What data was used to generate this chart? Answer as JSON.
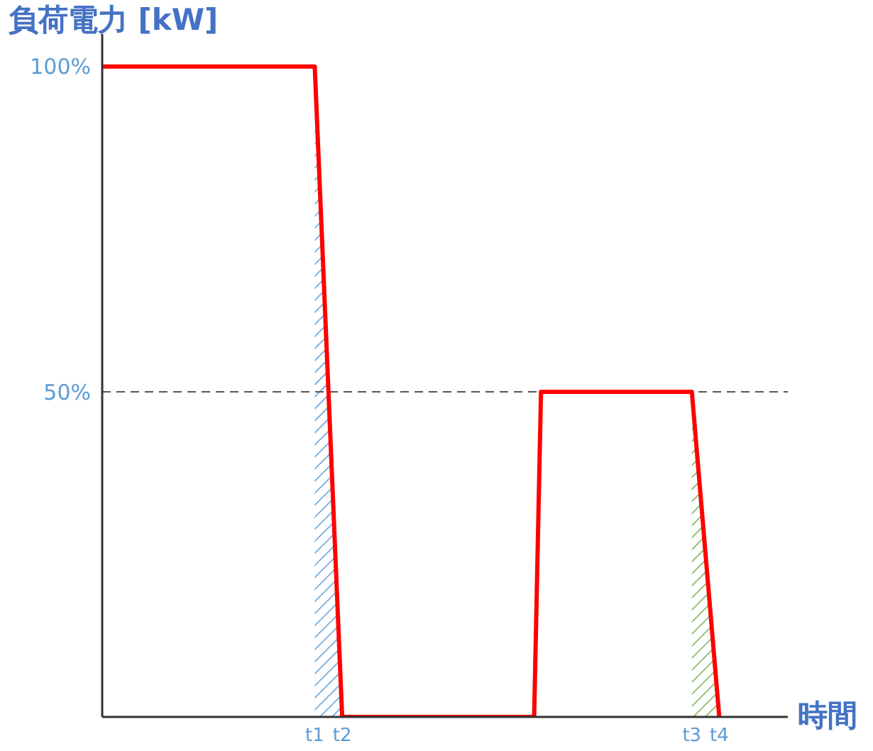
{
  "chart_data": {
    "type": "line",
    "xlabel": "時間",
    "ylabel": "負荷電力 [kW]",
    "ylim": [
      0,
      105
    ],
    "yticks": [
      {
        "value": 50,
        "label": "50%"
      },
      {
        "value": 100,
        "label": "100%"
      }
    ],
    "categories": [
      null,
      null,
      null,
      null,
      null,
      null,
      null,
      null,
      null,
      null,
      null,
      null,
      null,
      null,
      null,
      null,
      null,
      null,
      null,
      null,
      null,
      null,
      null,
      null,
      null,
      null,
      null,
      null,
      null,
      null,
      null,
      "t1",
      null,
      null,
      null,
      "t2",
      null,
      null,
      null,
      null,
      null,
      null,
      null,
      null,
      null,
      null,
      null,
      null,
      null,
      null,
      null,
      null,
      null,
      null,
      null,
      null,
      null,
      null,
      null,
      null,
      null,
      null,
      null,
      null,
      null,
      null,
      null,
      null,
      null,
      null,
      null,
      null,
      null,
      null,
      null,
      null,
      null,
      null,
      null,
      null,
      null,
      null,
      null,
      null,
      null,
      null,
      "t3",
      null,
      null,
      null,
      "t4",
      null,
      null,
      null,
      null,
      null,
      null,
      null,
      null,
      null,
      null
    ],
    "series": [
      {
        "type": "area",
        "color": "#5b9bd5",
        "values": [
          null,
          null,
          null,
          null,
          null,
          null,
          null,
          null,
          null,
          null,
          null,
          null,
          null,
          null,
          null,
          null,
          null,
          null,
          null,
          null,
          null,
          null,
          null,
          null,
          null,
          null,
          null,
          null,
          null,
          null,
          null,
          100,
          75,
          50,
          25,
          0,
          null,
          null,
          null,
          null,
          null,
          null,
          null,
          null,
          null,
          null,
          null,
          null,
          null,
          null,
          null,
          null,
          null,
          null,
          null,
          null,
          null,
          null,
          null,
          null,
          null,
          null,
          null,
          null,
          null,
          null,
          null,
          null,
          null,
          null,
          null,
          null,
          null,
          null,
          null,
          null,
          null,
          null,
          null,
          null,
          null,
          null,
          null,
          null,
          null,
          null,
          null,
          null,
          null,
          null,
          null,
          null,
          null,
          null,
          null,
          null,
          null,
          null,
          null,
          null,
          null
        ]
      },
      {
        "type": "area",
        "color": "#70ad47",
        "values": [
          null,
          null,
          null,
          null,
          null,
          null,
          null,
          null,
          null,
          null,
          null,
          null,
          null,
          null,
          null,
          null,
          null,
          null,
          null,
          null,
          null,
          null,
          null,
          null,
          null,
          null,
          null,
          null,
          null,
          null,
          null,
          null,
          null,
          null,
          null,
          null,
          null,
          null,
          null,
          null,
          null,
          null,
          null,
          null,
          null,
          null,
          null,
          null,
          null,
          null,
          null,
          null,
          null,
          null,
          null,
          null,
          null,
          null,
          null,
          null,
          null,
          null,
          null,
          null,
          null,
          null,
          null,
          null,
          null,
          null,
          null,
          null,
          null,
          null,
          null,
          null,
          null,
          null,
          null,
          null,
          null,
          null,
          null,
          null,
          null,
          null,
          50,
          37.5,
          25,
          12.5,
          0,
          null,
          null,
          null,
          null,
          null,
          null,
          null,
          null,
          null,
          null
        ]
      },
      {
        "color": "#ff0000",
        "values": [
          100,
          100,
          100,
          100,
          100,
          100,
          100,
          100,
          100,
          100,
          100,
          100,
          100,
          100,
          100,
          100,
          100,
          100,
          100,
          100,
          100,
          100,
          100,
          100,
          100,
          100,
          100,
          100,
          100,
          100,
          100,
          100,
          75,
          50,
          25,
          0,
          0,
          0,
          0,
          0,
          0,
          0,
          0,
          0,
          0,
          0,
          0,
          0,
          0,
          0,
          0,
          0,
          0,
          0,
          0,
          0,
          0,
          0,
          0,
          0,
          0,
          0,
          0,
          0,
          50,
          50,
          50,
          50,
          50,
          50,
          50,
          50,
          50,
          50,
          50,
          50,
          50,
          50,
          50,
          50,
          50,
          50,
          50,
          50,
          50,
          50,
          50,
          37.5,
          25,
          12.5,
          0,
          null,
          null,
          null,
          null,
          null,
          null,
          null,
          null,
          null,
          null
        ]
      }
    ],
    "ref_lines": [
      {
        "axis": "y",
        "value": 50,
        "color": "#555555",
        "line_style": "dashed"
      }
    ],
    "marker": "none",
    "line_style": "solid"
  }
}
